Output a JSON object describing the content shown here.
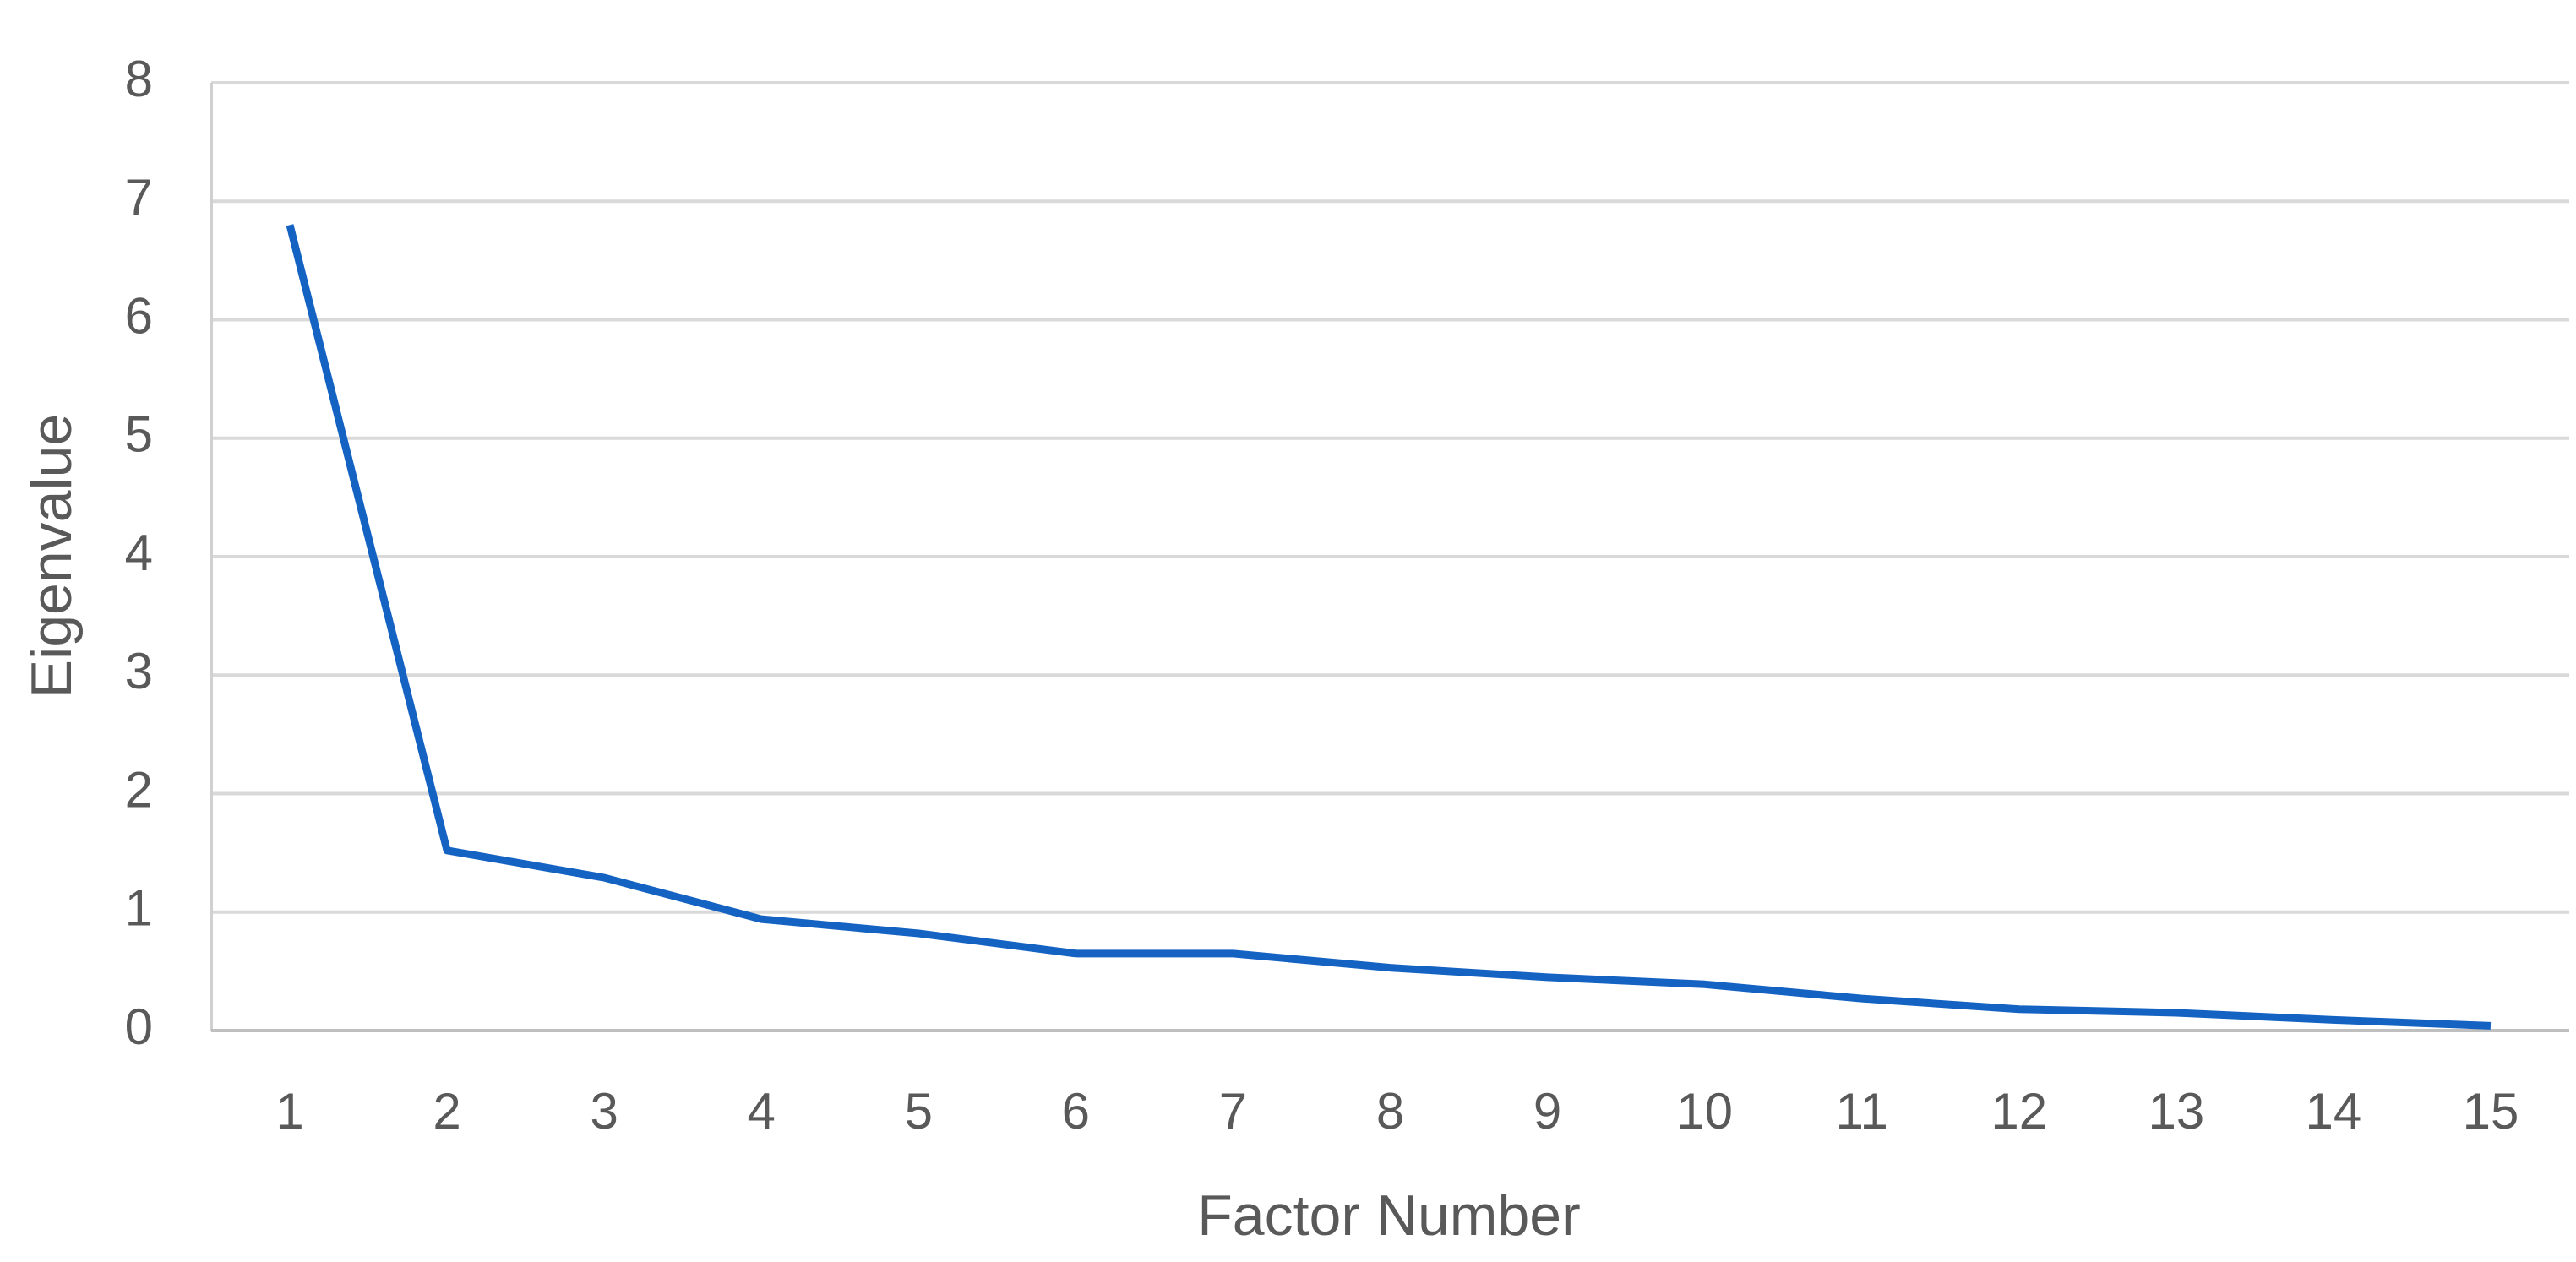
{
  "chart_data": {
    "type": "line",
    "x_label": "Factor Number",
    "y_label": "Eigenvalue",
    "categories": [
      1,
      2,
      3,
      4,
      5,
      6,
      7,
      8,
      9,
      10,
      11,
      12,
      13,
      14,
      15
    ],
    "series": [
      {
        "name": "Eigenvalue",
        "color": "#1462c2",
        "values": [
          6.8,
          1.52,
          1.29,
          0.94,
          0.82,
          0.65,
          0.65,
          0.53,
          0.45,
          0.39,
          0.27,
          0.18,
          0.15,
          0.09,
          0.04
        ]
      }
    ],
    "ylim": [
      0,
      8
    ],
    "yticks": [
      0,
      1,
      2,
      3,
      4,
      5,
      6,
      7,
      8
    ],
    "grid": true
  }
}
